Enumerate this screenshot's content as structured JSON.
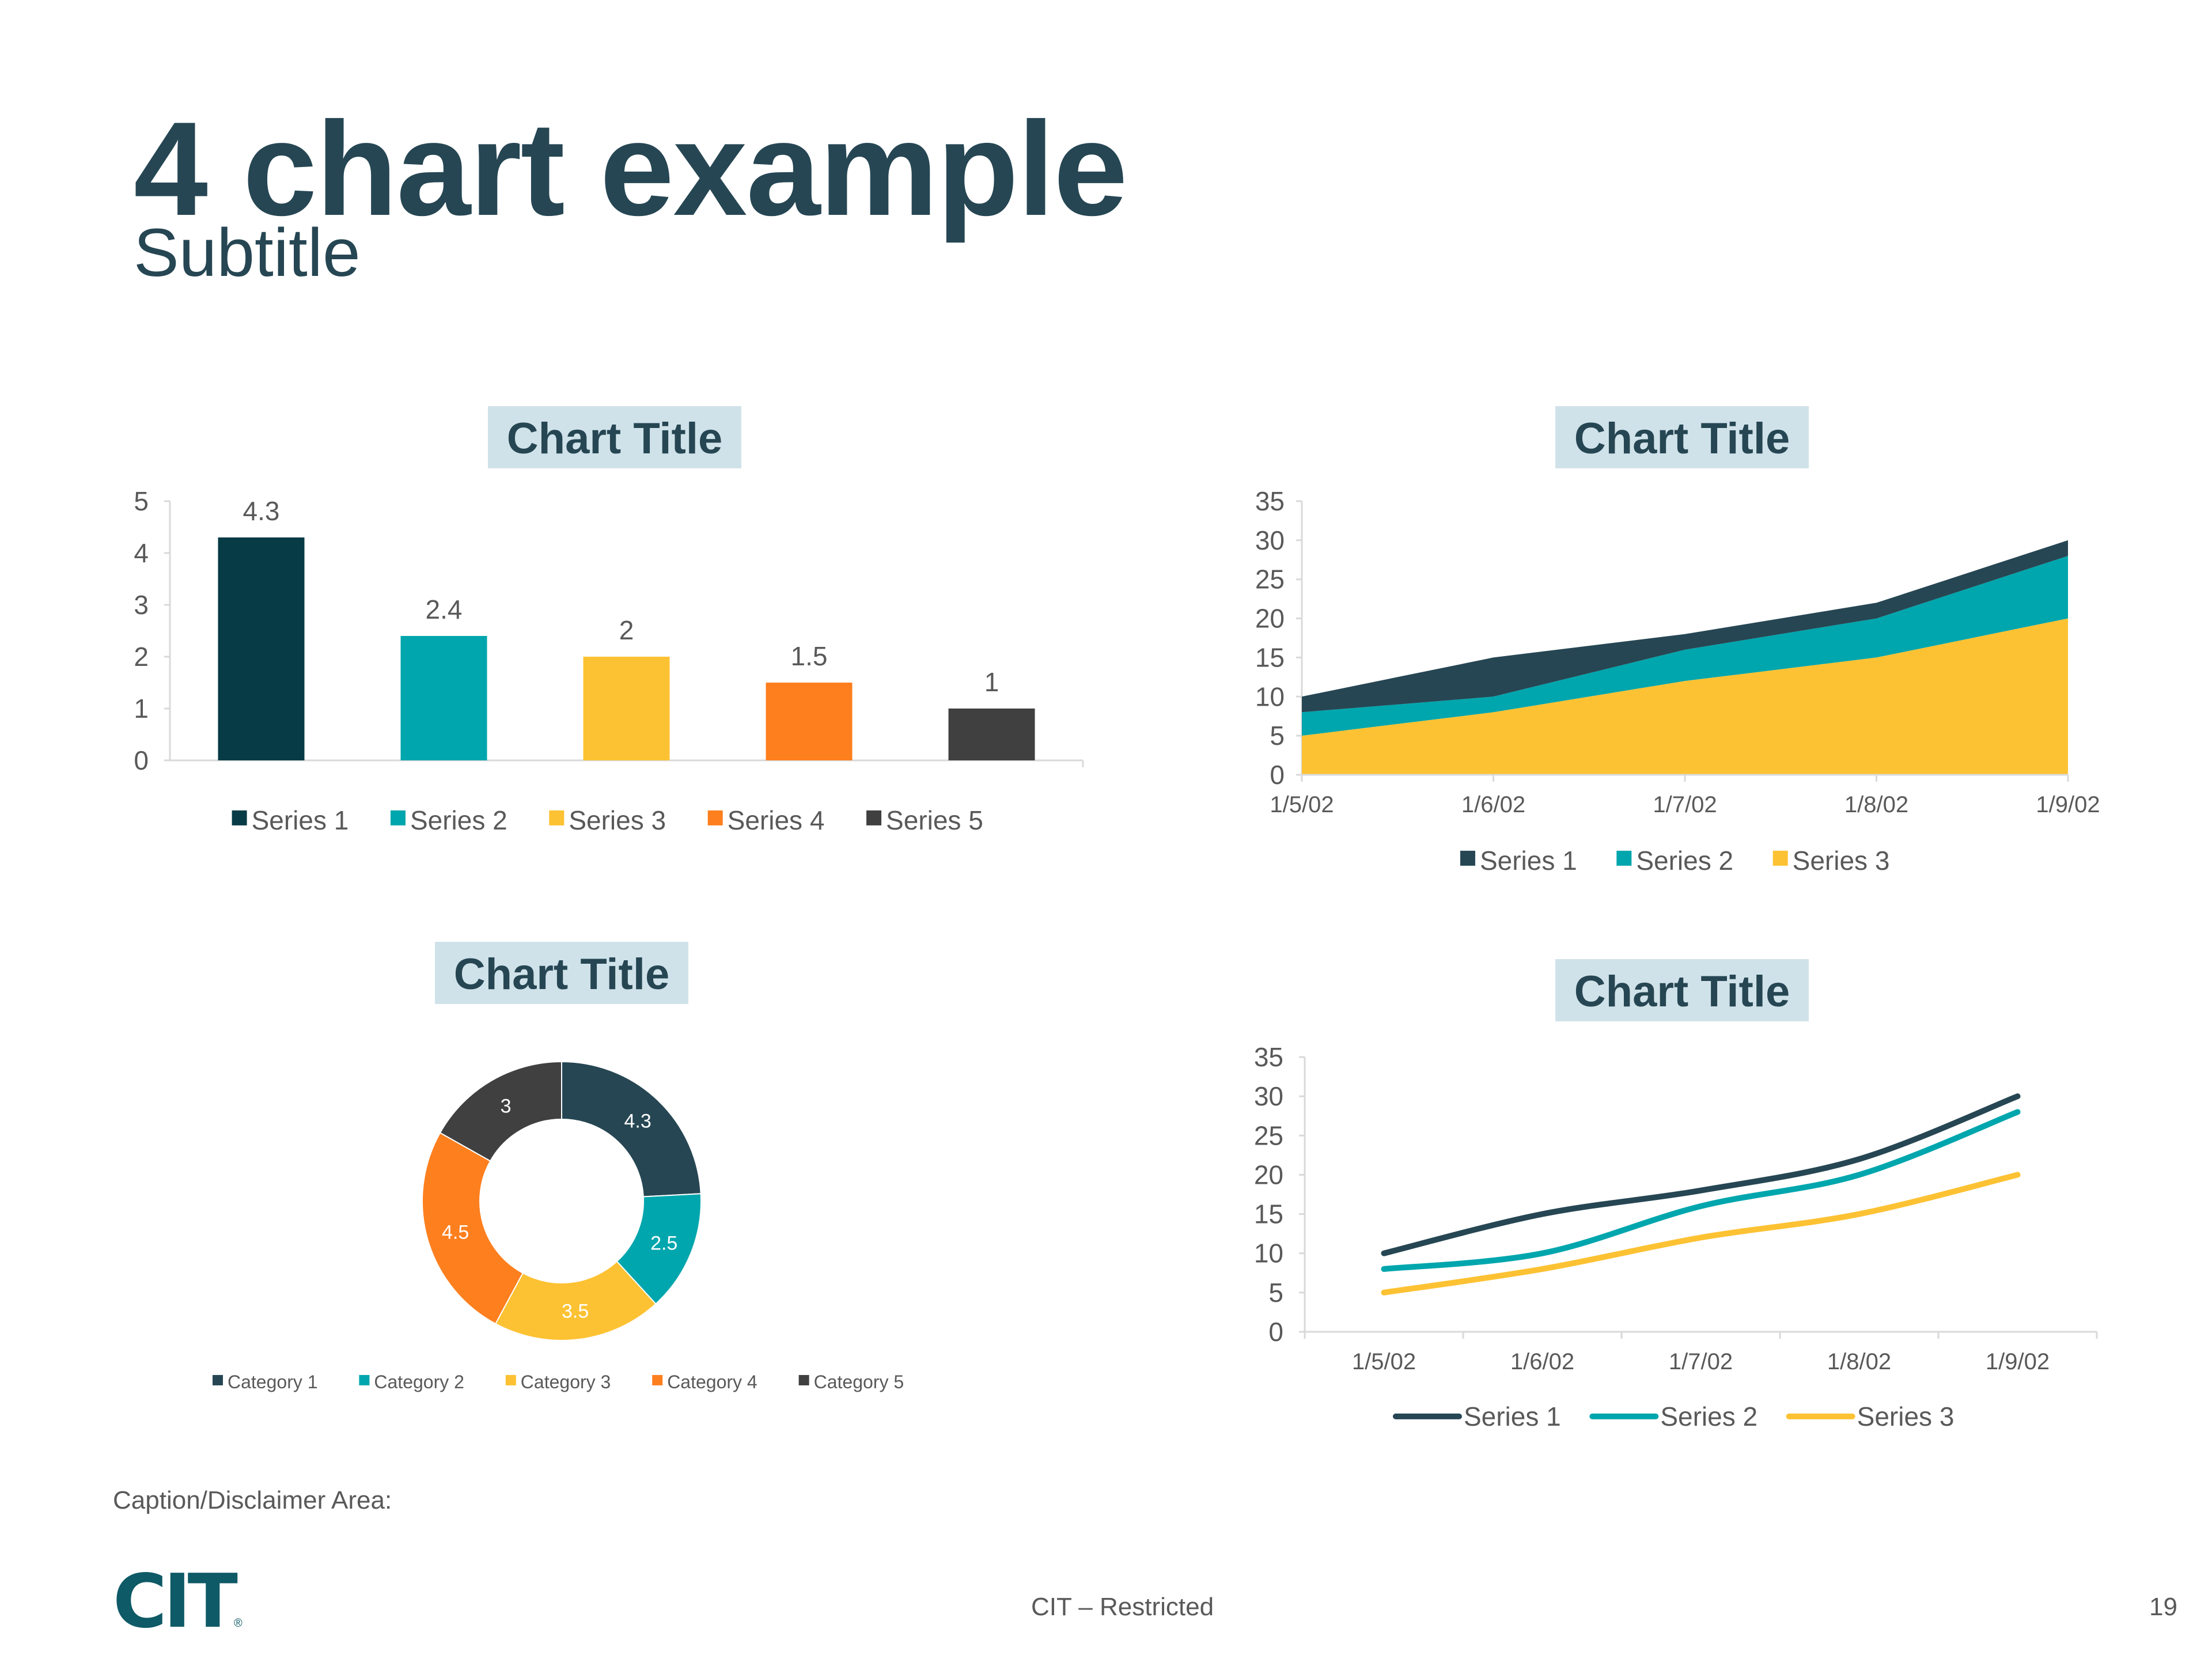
{
  "slide": {
    "title": "4 chart example",
    "subtitle": "Subtitle",
    "caption": "Caption/Disclaimer Area:",
    "footer": "CIT – Restricted",
    "page_number": "19",
    "logo": "CIT"
  },
  "colors": {
    "navy": "#264653",
    "dark_teal": "#073b45",
    "teal": "#00a6ad",
    "yellow": "#fdc233",
    "orange": "#fe7f1e",
    "dark_gray": "#404040",
    "title_bg": "#d0e2e9",
    "text": "#595959",
    "axis": "#d9d9d9"
  },
  "chart_data": [
    {
      "type": "bar",
      "title": "Chart Title",
      "series": [
        {
          "name": "Series 1",
          "value": 4.3,
          "label": "4.3",
          "color": "#073b45"
        },
        {
          "name": "Series 2",
          "value": 2.4,
          "label": "2.4",
          "color": "#00a6ad"
        },
        {
          "name": "Series 3",
          "value": 2,
          "label": "2",
          "color": "#fdc233"
        },
        {
          "name": "Series 4",
          "value": 1.5,
          "label": "1.5",
          "color": "#fe7f1e"
        },
        {
          "name": "Series 5",
          "value": 1,
          "label": "1",
          "color": "#404040"
        }
      ],
      "yticks": [
        "0",
        "1",
        "2",
        "3",
        "4",
        "5"
      ],
      "ylim": [
        0,
        5
      ],
      "legend": "bottom"
    },
    {
      "type": "area",
      "stacked": true,
      "title": "Chart Title",
      "x": [
        "1/5/02",
        "1/6/02",
        "1/7/02",
        "1/8/02",
        "1/9/02"
      ],
      "series": [
        {
          "name": "Series 1",
          "values": [
            2,
            5,
            2,
            2,
            2
          ],
          "color": "#264653"
        },
        {
          "name": "Series 2",
          "values": [
            3,
            2,
            4,
            5,
            8
          ],
          "color": "#00a6ad"
        },
        {
          "name": "Series 3",
          "values": [
            5,
            8,
            12,
            15,
            20
          ],
          "color": "#fdc233"
        }
      ],
      "yticks": [
        "0",
        "5",
        "10",
        "15",
        "20",
        "25",
        "30",
        "35"
      ],
      "ylim": [
        0,
        35
      ],
      "legend": "bottom"
    },
    {
      "type": "pie",
      "donut": true,
      "title": "Chart Title",
      "categories": [
        "Category 1",
        "Category 2",
        "Category 3",
        "Category 4",
        "Category 5"
      ],
      "values": [
        4.3,
        2.5,
        3.5,
        4.5,
        3
      ],
      "labels": [
        "4.3",
        "2.5",
        "3.5",
        "4.5",
        "3"
      ],
      "colors": [
        "#264653",
        "#00a6ad",
        "#fdc233",
        "#fe7f1e",
        "#404040"
      ],
      "legend": "bottom"
    },
    {
      "type": "line",
      "title": "Chart Title",
      "x": [
        "1/5/02",
        "1/6/02",
        "1/7/02",
        "1/8/02",
        "1/9/02"
      ],
      "series": [
        {
          "name": "Series 1",
          "values": [
            10,
            15,
            18,
            22,
            30
          ],
          "color": "#264653"
        },
        {
          "name": "Series 2",
          "values": [
            8,
            10,
            16,
            20,
            28
          ],
          "color": "#00a6ad"
        },
        {
          "name": "Series 3",
          "values": [
            5,
            8,
            12,
            15,
            20
          ],
          "color": "#fdc233"
        }
      ],
      "yticks": [
        "0",
        "5",
        "10",
        "15",
        "20",
        "25",
        "30",
        "35"
      ],
      "ylim": [
        0,
        35
      ],
      "legend": "bottom"
    }
  ]
}
